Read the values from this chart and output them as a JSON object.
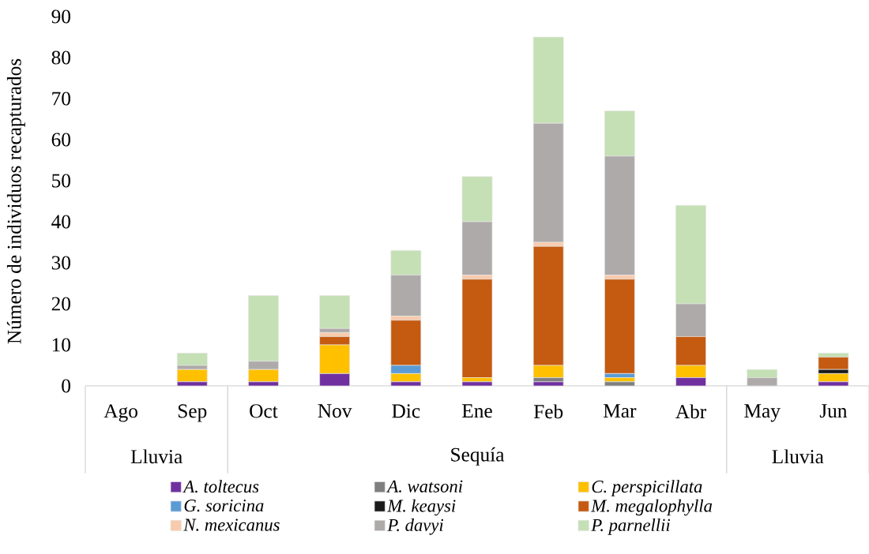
{
  "chart_data": {
    "type": "bar",
    "stacked": true,
    "ylabel": "Número de individuos recapturados",
    "categories": [
      "Ago",
      "Sep",
      "Oct",
      "Nov",
      "Dic",
      "Ene",
      "Feb",
      "Mar",
      "Abr",
      "May",
      "Jun"
    ],
    "series": [
      {
        "name": "A. toltecus",
        "color": "#7030a0",
        "values": [
          0,
          1,
          1,
          3,
          1,
          1,
          1,
          0,
          2,
          0,
          1
        ]
      },
      {
        "name": "A. watsoni",
        "color": "#7f7f7f",
        "values": [
          0,
          0,
          0,
          0,
          0,
          0,
          1,
          1,
          0,
          0,
          0
        ]
      },
      {
        "name": "C. perspicillata",
        "color": "#ffc000",
        "values": [
          0,
          3,
          3,
          7,
          2,
          1,
          3,
          1,
          3,
          0,
          2
        ]
      },
      {
        "name": "G. soricina",
        "color": "#5b9bd5",
        "values": [
          0,
          0,
          0,
          0,
          2,
          0,
          0,
          1,
          0,
          0,
          0
        ]
      },
      {
        "name": "M. keaysi",
        "color": "#1a1a1a",
        "values": [
          0,
          0,
          0,
          0,
          0,
          0,
          0,
          0,
          0,
          0,
          1
        ]
      },
      {
        "name": "M. megalophylla",
        "color": "#c55a11",
        "values": [
          0,
          0,
          0,
          2,
          11,
          24,
          29,
          23,
          7,
          0,
          3
        ]
      },
      {
        "name": "N. mexicanus",
        "color": "#f8cbad",
        "values": [
          0,
          0,
          0,
          1,
          1,
          1,
          1,
          1,
          0,
          0,
          0
        ]
      },
      {
        "name": "P. davyi",
        "color": "#aeaaaa",
        "values": [
          0,
          1,
          2,
          1,
          10,
          13,
          29,
          29,
          8,
          2,
          0
        ]
      },
      {
        "name": "P. parnellii",
        "color": "#c5e0b4",
        "values": [
          0,
          3,
          16,
          8,
          6,
          11,
          21,
          11,
          24,
          2,
          1
        ]
      }
    ],
    "ylim": [
      0,
      90
    ],
    "yticks": [
      0,
      10,
      20,
      30,
      40,
      50,
      60,
      70,
      80,
      90
    ],
    "annotations": [
      "Lluvia",
      "Sequía",
      "Lluvia"
    ],
    "legend": "bottom",
    "grid": false
  }
}
